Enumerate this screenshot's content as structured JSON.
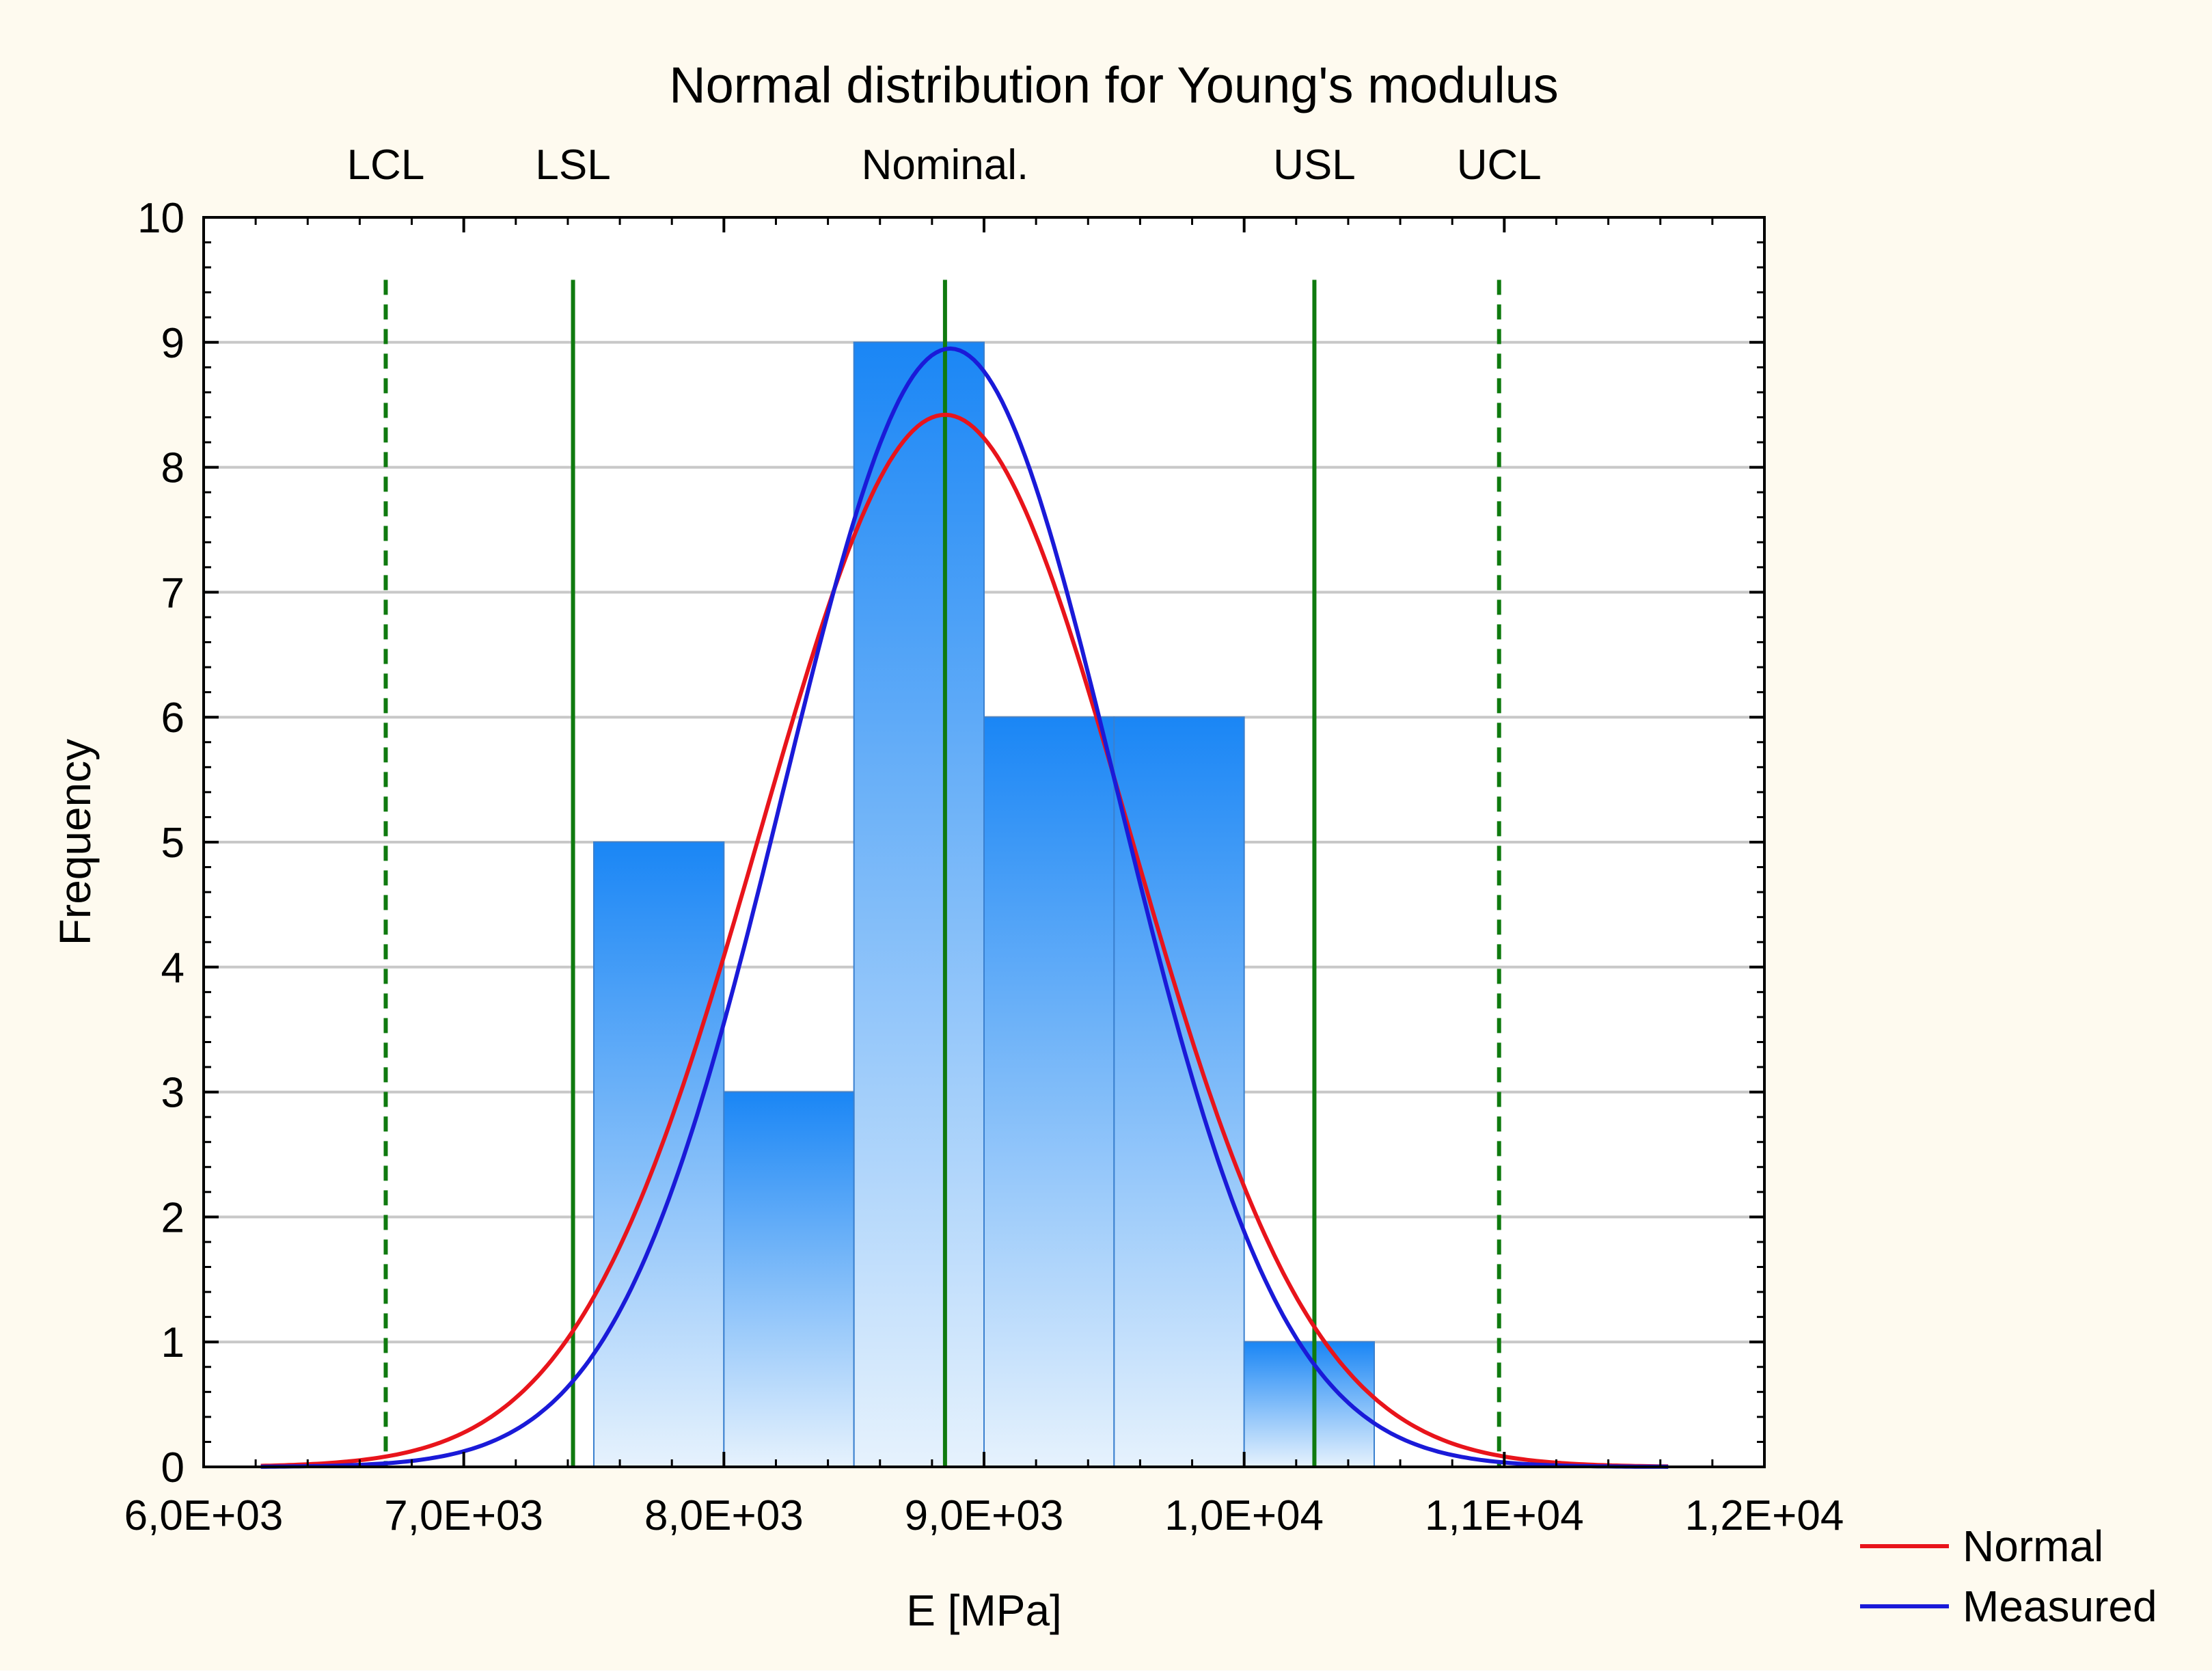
{
  "chart_data": {
    "type": "bar",
    "title": "Normal distribution for Young's modulus",
    "xlabel": "E [MPa]",
    "ylabel": "Frequency",
    "xlim": [
      6000,
      12000
    ],
    "ylim": [
      0,
      10
    ],
    "x_ticks": [
      6000,
      7000,
      8000,
      9000,
      10000,
      11000,
      12000
    ],
    "x_tick_labels": [
      "6,0E+03",
      "7,0E+03",
      "8,0E+03",
      "9,0E+03",
      "1,0E+04",
      "1,1E+04",
      "1,2E+04"
    ],
    "y_ticks": [
      0,
      1,
      2,
      3,
      4,
      5,
      6,
      7,
      8,
      9,
      10
    ],
    "y_tick_labels": [
      "0",
      "1",
      "2",
      "3",
      "4",
      "5",
      "6",
      "7",
      "8",
      "9",
      "10"
    ],
    "grid": true,
    "bins": [
      {
        "from": 7500,
        "to": 8000,
        "count": 5
      },
      {
        "from": 8000,
        "to": 8500,
        "count": 3
      },
      {
        "from": 8500,
        "to": 9000,
        "count": 9
      },
      {
        "from": 9000,
        "to": 9500,
        "count": 6
      },
      {
        "from": 9500,
        "to": 10000,
        "count": 6
      },
      {
        "from": 10000,
        "to": 10500,
        "count": 1
      }
    ],
    "curves": [
      {
        "name": "Normal",
        "color": "#e8141b",
        "mean": 8850,
        "sd": 707,
        "peak": 8.42,
        "range": [
          6220,
          11630
        ]
      },
      {
        "name": "Measured",
        "color": "#1a1ad8",
        "mean": 8870,
        "sd": 640,
        "peak": 8.95,
        "range": [
          6220,
          11630
        ]
      }
    ],
    "limit_lines": [
      {
        "label": "LCL",
        "x": 6700,
        "style": "dashed"
      },
      {
        "label": "LSL",
        "x": 7420,
        "style": "solid"
      },
      {
        "label": "Nominal.",
        "x": 8850,
        "style": "solid"
      },
      {
        "label": "USL",
        "x": 10270,
        "style": "solid"
      },
      {
        "label": "UCL",
        "x": 10980,
        "style": "dashed"
      }
    ],
    "limit_line_top": 9.5,
    "limit_color": "#0f7a0f",
    "legend_position": "bottom-right"
  },
  "colors": {
    "page_background": "#fefaef",
    "plot_background": "#ffffff",
    "grid": "#c8c8c8",
    "bar_top": "#1a86f5",
    "bar_bottom": "#e6f2fd",
    "bar_edge": "#3a80cf"
  }
}
